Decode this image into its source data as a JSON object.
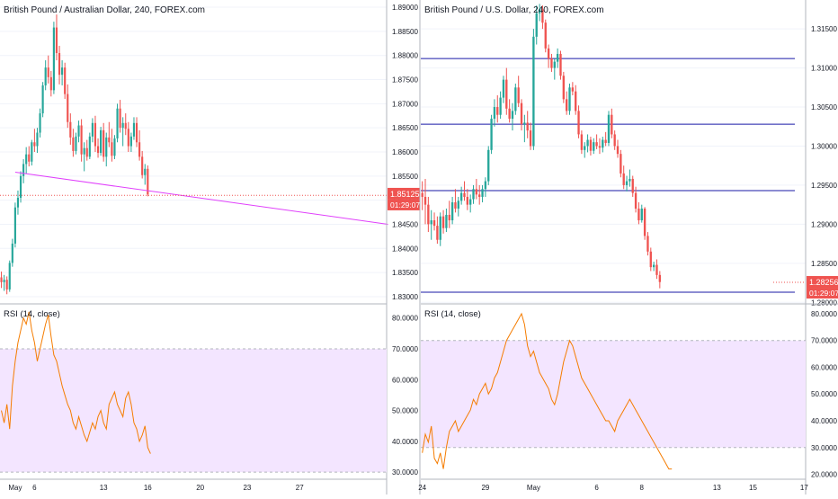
{
  "chart_data": [
    {
      "type": "candlestick",
      "panel": "left",
      "title": "British Pound / Australian Dollar, 240, FOREX.com",
      "price_ticks": [
        "1.89000",
        "1.88500",
        "1.88000",
        "1.87500",
        "1.87000",
        "1.86500",
        "1.86000",
        "1.85500",
        "1.85000",
        "1.84500",
        "1.84000",
        "1.83500",
        "1.83000"
      ],
      "price_range": [
        1.8285,
        1.8915
      ],
      "last_price_label": "1.85125",
      "countdown_label": "01:29:07",
      "last_price": 1.85125,
      "x_ticks": [
        "May",
        "6",
        "13",
        "16",
        "20",
        "23",
        "27"
      ],
      "x_tick_index": [
        5,
        12,
        37,
        53,
        72,
        89,
        108
      ],
      "candles": [
        [
          1.834,
          1.8352,
          1.8318,
          1.833
        ],
        [
          1.833,
          1.8345,
          1.8312,
          1.8335
        ],
        [
          1.8335,
          1.8342,
          1.8305,
          1.8315
        ],
        [
          1.8315,
          1.8375,
          1.831,
          1.837
        ],
        [
          1.837,
          1.842,
          1.8362,
          1.841
        ],
        [
          1.841,
          1.8495,
          1.8402,
          1.8485
        ],
        [
          1.8485,
          1.852,
          1.847,
          1.8505
        ],
        [
          1.8505,
          1.856,
          1.8495,
          1.855
        ],
        [
          1.855,
          1.8585,
          1.8535,
          1.8575
        ],
        [
          1.8575,
          1.861,
          1.8555,
          1.8595
        ],
        [
          1.8595,
          1.8612,
          1.857,
          1.858
        ],
        [
          1.858,
          1.8625,
          1.8572,
          1.862
        ],
        [
          1.862,
          1.8648,
          1.86,
          1.8612
        ],
        [
          1.8612,
          1.865,
          1.8598,
          1.864
        ],
        [
          1.864,
          1.869,
          1.863,
          1.868
        ],
        [
          1.868,
          1.8745,
          1.8672,
          1.8738
        ],
        [
          1.8738,
          1.879,
          1.8728,
          1.8775
        ],
        [
          1.8775,
          1.88,
          1.8742,
          1.8755
        ],
        [
          1.8755,
          1.8768,
          1.8715,
          1.8728
        ],
        [
          1.8728,
          1.887,
          1.872,
          1.8858
        ],
        [
          1.8858,
          1.8885,
          1.879,
          1.8805
        ],
        [
          1.8805,
          1.882,
          1.874,
          1.876
        ],
        [
          1.876,
          1.879,
          1.8738,
          1.8775
        ],
        [
          1.8775,
          1.8785,
          1.871,
          1.872
        ],
        [
          1.872,
          1.874,
          1.865,
          1.8662
        ],
        [
          1.8662,
          1.868,
          1.8615,
          1.863
        ],
        [
          1.863,
          1.8648,
          1.859,
          1.8602
        ],
        [
          1.8602,
          1.864,
          1.8595,
          1.8632
        ],
        [
          1.8632,
          1.8665,
          1.862,
          1.8655
        ],
        [
          1.8655,
          1.8668,
          1.858,
          1.8595
        ],
        [
          1.8595,
          1.862,
          1.856,
          1.8608
        ],
        [
          1.8608,
          1.8625,
          1.8582,
          1.859
        ],
        [
          1.859,
          1.864,
          1.8585,
          1.8632
        ],
        [
          1.8632,
          1.867,
          1.862,
          1.866
        ],
        [
          1.866,
          1.8675,
          1.86,
          1.8612
        ],
        [
          1.8612,
          1.8628,
          1.8588,
          1.8598
        ],
        [
          1.8598,
          1.8652,
          1.8592,
          1.8645
        ],
        [
          1.8645,
          1.866,
          1.858,
          1.859
        ],
        [
          1.859,
          1.864,
          1.857,
          1.863
        ],
        [
          1.863,
          1.8662,
          1.861,
          1.862
        ],
        [
          1.862,
          1.8648,
          1.858,
          1.8592
        ],
        [
          1.8592,
          1.8635,
          1.8585,
          1.8628
        ],
        [
          1.8628,
          1.87,
          1.862,
          1.869
        ],
        [
          1.869,
          1.8708,
          1.864,
          1.865
        ],
        [
          1.865,
          1.8672,
          1.8612,
          1.866
        ],
        [
          1.866,
          1.868,
          1.8635,
          1.8648
        ],
        [
          1.8648,
          1.8662,
          1.86,
          1.8612
        ],
        [
          1.8612,
          1.864,
          1.86,
          1.8632
        ],
        [
          1.8632,
          1.8672,
          1.8625,
          1.866
        ],
        [
          1.866,
          1.8672,
          1.861,
          1.862
        ],
        [
          1.862,
          1.8645,
          1.8582,
          1.859
        ],
        [
          1.859,
          1.8602,
          1.8545,
          1.8552
        ],
        [
          1.8552,
          1.8575,
          1.8532,
          1.8565
        ],
        [
          1.8565,
          1.8572,
          1.8508,
          1.8512
        ]
      ],
      "trendline": [
        [
          5,
          1.8558
        ],
        [
          140,
          1.845
        ]
      ],
      "hline": 1.851
    },
    {
      "type": "candlestick",
      "panel": "right",
      "title": "British Pound / U.S. Dollar, 240, FOREX.com",
      "price_ticks": [
        "1.31500",
        "1.31000",
        "1.30500",
        "1.30000",
        "1.29500",
        "1.29000",
        "1.28500",
        "1.28000"
      ],
      "price_range": [
        1.2798,
        1.3187
      ],
      "last_price_label": "1.28256",
      "countdown_label": "01:29:07",
      "last_price": 1.28256,
      "x_ticks": [
        "24",
        "29",
        "May",
        "6",
        "8",
        "13",
        "15",
        "17"
      ],
      "x_tick_index": [
        0,
        21,
        37,
        58,
        73,
        98,
        110,
        127
      ],
      "hlines": [
        1.3112,
        1.3028,
        1.2943,
        1.2813
      ],
      "candles": [
        [
          1.294,
          1.2955,
          1.2918,
          1.2935
        ],
        [
          1.2935,
          1.2958,
          1.29,
          1.2925
        ],
        [
          1.2925,
          1.2935,
          1.289,
          1.29
        ],
        [
          1.29,
          1.2918,
          1.288,
          1.2905
        ],
        [
          1.2905,
          1.2915,
          1.2892,
          1.2898
        ],
        [
          1.2898,
          1.291,
          1.2875,
          1.288
        ],
        [
          1.288,
          1.2915,
          1.2872,
          1.291
        ],
        [
          1.291,
          1.2918,
          1.2888,
          1.2895
        ],
        [
          1.2895,
          1.292,
          1.289,
          1.2912
        ],
        [
          1.2912,
          1.293,
          1.2895,
          1.2905
        ],
        [
          1.2905,
          1.2935,
          1.29,
          1.2928
        ],
        [
          1.2928,
          1.2945,
          1.2915,
          1.292
        ],
        [
          1.292,
          1.2935,
          1.291,
          1.293
        ],
        [
          1.293,
          1.2948,
          1.2925,
          1.294
        ],
        [
          1.294,
          1.2955,
          1.293,
          1.2935
        ],
        [
          1.2935,
          1.2945,
          1.2918,
          1.2925
        ],
        [
          1.2925,
          1.2938,
          1.2915,
          1.2932
        ],
        [
          1.2932,
          1.295,
          1.2926,
          1.2945
        ],
        [
          1.2945,
          1.2958,
          1.2932,
          1.2938
        ],
        [
          1.2938,
          1.295,
          1.2925,
          1.2935
        ],
        [
          1.2935,
          1.295,
          1.2928,
          1.2945
        ],
        [
          1.2945,
          1.296,
          1.2935,
          1.2955
        ],
        [
          1.2955,
          1.3,
          1.295,
          1.2995
        ],
        [
          1.2995,
          1.304,
          1.299,
          1.3035
        ],
        [
          1.3035,
          1.306,
          1.3025,
          1.305
        ],
        [
          1.305,
          1.3065,
          1.303,
          1.304
        ],
        [
          1.304,
          1.307,
          1.3035,
          1.3062
        ],
        [
          1.3062,
          1.309,
          1.3055,
          1.3085
        ],
        [
          1.3085,
          1.31,
          1.304,
          1.3048
        ],
        [
          1.3048,
          1.306,
          1.303,
          1.3035
        ],
        [
          1.3035,
          1.3055,
          1.302,
          1.3045
        ],
        [
          1.3045,
          1.308,
          1.304,
          1.3075
        ],
        [
          1.3075,
          1.309,
          1.305,
          1.3055
        ],
        [
          1.3055,
          1.306,
          1.302,
          1.3028
        ],
        [
          1.3028,
          1.304,
          1.3005,
          1.303
        ],
        [
          1.303,
          1.3045,
          1.301,
          1.302
        ],
        [
          1.302,
          1.303,
          1.2995,
          1.3
        ],
        [
          1.3,
          1.315,
          1.2995,
          1.314
        ],
        [
          1.314,
          1.318,
          1.313,
          1.317
        ],
        [
          1.317,
          1.3182,
          1.316,
          1.3175
        ],
        [
          1.3175,
          1.318,
          1.315,
          1.3158
        ],
        [
          1.3158,
          1.3162,
          1.312,
          1.3125
        ],
        [
          1.3125,
          1.313,
          1.31,
          1.3112
        ],
        [
          1.3112,
          1.3118,
          1.3095,
          1.31
        ],
        [
          1.31,
          1.3112,
          1.3085,
          1.3108
        ],
        [
          1.3108,
          1.3125,
          1.31,
          1.3118
        ],
        [
          1.3118,
          1.3122,
          1.3085,
          1.309
        ],
        [
          1.309,
          1.3095,
          1.3055,
          1.306
        ],
        [
          1.306,
          1.307,
          1.304,
          1.3045
        ],
        [
          1.3045,
          1.308,
          1.304,
          1.3075
        ],
        [
          1.3075,
          1.3082,
          1.3065,
          1.307
        ],
        [
          1.307,
          1.3078,
          1.304,
          1.3045
        ],
        [
          1.3045,
          1.3052,
          1.301,
          1.3015
        ],
        [
          1.3015,
          1.302,
          1.299,
          1.2995
        ],
        [
          1.2995,
          1.3005,
          1.2985,
          1.3
        ],
        [
          1.3,
          1.3015,
          1.2992,
          1.3008
        ],
        [
          1.3008,
          1.3012,
          1.2988,
          1.2994
        ],
        [
          1.2994,
          1.301,
          1.299,
          1.3005
        ],
        [
          1.3005,
          1.3015,
          1.2996,
          1.3
        ],
        [
          1.3,
          1.301,
          1.299,
          1.2998
        ],
        [
          1.2998,
          1.3012,
          1.2992,
          1.3008
        ],
        [
          1.3008,
          1.3018,
          1.3,
          1.3004
        ],
        [
          1.3004,
          1.3045,
          1.3,
          1.304
        ],
        [
          1.304,
          1.3048,
          1.301,
          1.3015
        ],
        [
          1.3015,
          1.302,
          1.2995,
          1.3
        ],
        [
          1.3,
          1.3008,
          1.2985,
          1.299
        ],
        [
          1.299,
          1.2995,
          1.296,
          1.2965
        ],
        [
          1.2965,
          1.2975,
          1.2945,
          1.295
        ],
        [
          1.295,
          1.2962,
          1.2942,
          1.2955
        ],
        [
          1.2955,
          1.297,
          1.2948,
          1.2958
        ],
        [
          1.2958,
          1.2962,
          1.2935,
          1.294
        ],
        [
          1.294,
          1.2948,
          1.2915,
          1.292
        ],
        [
          1.292,
          1.2928,
          1.29,
          1.2905
        ],
        [
          1.2905,
          1.2925,
          1.2902,
          1.292
        ],
        [
          1.292,
          1.2922,
          1.288,
          1.2885
        ],
        [
          1.2885,
          1.289,
          1.286,
          1.2865
        ],
        [
          1.2865,
          1.287,
          1.284,
          1.2845
        ],
        [
          1.2845,
          1.2852,
          1.284,
          1.2848
        ],
        [
          1.2848,
          1.2855,
          1.283,
          1.2835
        ],
        [
          1.2835,
          1.284,
          1.2818,
          1.2826
        ]
      ]
    },
    {
      "type": "line",
      "panel": "left",
      "title": "RSI (14, close)",
      "ticks": [
        "80.0000",
        "70.0000",
        "60.0000",
        "50.0000",
        "40.0000",
        "30.0000"
      ],
      "y_range": [
        28,
        84
      ],
      "band": [
        30,
        70
      ],
      "values": [
        50,
        46,
        52,
        44,
        58,
        66,
        72,
        76,
        80,
        78,
        82,
        76,
        72,
        66,
        70,
        74,
        78,
        81,
        74,
        68,
        66,
        62,
        58,
        55,
        52,
        50,
        46,
        44,
        48,
        45,
        42,
        40,
        43,
        46,
        44,
        48,
        50,
        46,
        44,
        52,
        54,
        56,
        52,
        50,
        48,
        54,
        56,
        52,
        46,
        44,
        40,
        42,
        45,
        38,
        36
      ]
    },
    {
      "type": "line",
      "panel": "right",
      "title": "RSI (14, close)",
      "ticks": [
        "80.0000",
        "70.0000",
        "60.0000",
        "50.0000",
        "40.0000",
        "30.0000",
        "20.0000"
      ],
      "y_range": [
        18.5,
        83
      ],
      "band": [
        30,
        70
      ],
      "values": [
        28,
        35,
        32,
        38,
        26,
        24,
        28,
        22,
        30,
        36,
        38,
        40,
        36,
        38,
        40,
        42,
        44,
        48,
        46,
        50,
        52,
        54,
        50,
        52,
        56,
        58,
        62,
        66,
        70,
        72,
        74,
        76,
        78,
        80,
        76,
        68,
        64,
        66,
        62,
        58,
        56,
        54,
        52,
        48,
        46,
        50,
        56,
        62,
        66,
        70,
        68,
        64,
        60,
        56,
        54,
        52,
        50,
        48,
        46,
        44,
        42,
        40,
        40,
        38,
        36,
        40,
        42,
        44,
        46,
        48,
        46,
        44,
        42,
        40,
        38,
        36,
        34,
        32,
        30,
        28,
        26,
        24,
        22,
        22
      ]
    }
  ]
}
